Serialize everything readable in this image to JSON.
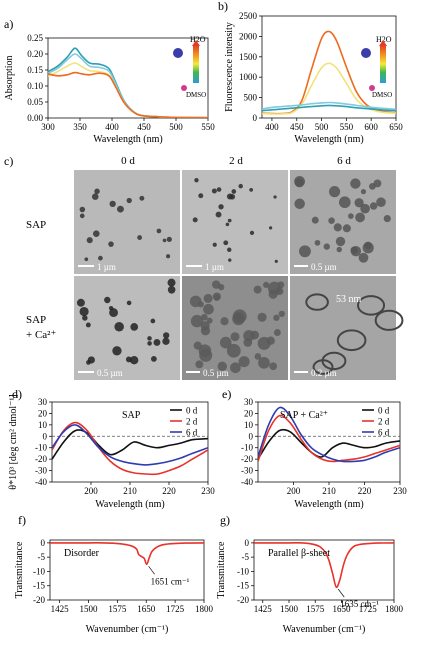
{
  "panels": {
    "a": {
      "letter": "a)"
    },
    "b": {
      "letter": "b)"
    },
    "c": {
      "letter": "c)"
    },
    "d": {
      "letter": "d)"
    },
    "e": {
      "letter": "e)"
    },
    "f": {
      "letter": "f)"
    },
    "g": {
      "letter": "g)"
    }
  },
  "colors": {
    "orange": "#ee6a1e",
    "yellow": "#f2e27a",
    "cyan": "#7fcbe0",
    "teal": "#2f9fb1",
    "black": "#111111",
    "red": "#e8322a",
    "blue": "#2f3cb0",
    "tem_bg": "#b9b9b9",
    "scale_bar": "#ffffff"
  },
  "solvent_gradient": {
    "top_label": "H2O",
    "bottom_label": "DMSO",
    "colors": [
      "#e33d22",
      "#f4a01f",
      "#f3e93b",
      "#3fb84d",
      "#2f9bd6"
    ]
  },
  "tem": {
    "col_headers": [
      "0 d",
      "2 d",
      "6 d"
    ],
    "row_labels": [
      "SAP",
      "SAP",
      "+ Ca²⁺"
    ],
    "scale_labels": [
      "1 µm",
      "1 µm",
      "0.5 µm",
      "0.5 µm",
      "0.5 µm",
      "0.2 µm"
    ],
    "fiber_label": "53 nm"
  },
  "chart_data": [
    {
      "id": "a",
      "type": "line",
      "xlabel": "Wavelength (nm)",
      "ylabel": "Absorption",
      "xlim": [
        300,
        550
      ],
      "ylim": [
        0,
        0.25
      ],
      "xticks": [
        300,
        350,
        400,
        450,
        500,
        550
      ],
      "yticks": [
        0,
        0.05,
        0.1,
        0.15,
        0.2,
        0.25
      ],
      "ytick_labels": [
        "0.00",
        "0.05",
        "0.10",
        "0.15",
        "0.20",
        "0.25"
      ],
      "series": [
        {
          "color": "#2f9fb1",
          "x": [
            300,
            315,
            330,
            342,
            352,
            365,
            380,
            395,
            405,
            420,
            440,
            470,
            500,
            550
          ],
          "y": [
            0.145,
            0.162,
            0.19,
            0.218,
            0.196,
            0.172,
            0.168,
            0.155,
            0.115,
            0.05,
            0.012,
            0.004,
            0.002,
            0.001
          ]
        },
        {
          "color": "#7fcbe0",
          "x": [
            300,
            315,
            330,
            342,
            352,
            365,
            380,
            395,
            405,
            420,
            440,
            470,
            500,
            550
          ],
          "y": [
            0.14,
            0.155,
            0.182,
            0.2,
            0.186,
            0.162,
            0.158,
            0.147,
            0.11,
            0.048,
            0.012,
            0.004,
            0.002,
            0.001
          ]
        },
        {
          "color": "#f2e27a",
          "x": [
            300,
            315,
            330,
            342,
            352,
            365,
            380,
            395,
            405,
            420,
            440,
            470,
            500,
            550
          ],
          "y": [
            0.13,
            0.145,
            0.162,
            0.172,
            0.162,
            0.148,
            0.145,
            0.135,
            0.1,
            0.045,
            0.011,
            0.004,
            0.002,
            0.001
          ]
        },
        {
          "color": "#ee6a1e",
          "x": [
            300,
            315,
            330,
            342,
            352,
            365,
            380,
            395,
            405,
            420,
            440,
            470,
            500,
            550
          ],
          "y": [
            0.138,
            0.132,
            0.135,
            0.142,
            0.138,
            0.135,
            0.14,
            0.132,
            0.1,
            0.045,
            0.011,
            0.004,
            0.002,
            0.001
          ]
        }
      ]
    },
    {
      "id": "b",
      "type": "line",
      "xlabel": "Wavelength (nm)",
      "ylabel": "Fluorescence intensity",
      "xlim": [
        380,
        650
      ],
      "ylim": [
        0,
        2500
      ],
      "xticks": [
        400,
        450,
        500,
        550,
        600,
        650
      ],
      "yticks": [
        0,
        500,
        1000,
        1500,
        2000,
        2500
      ],
      "series": [
        {
          "color": "#ee6a1e",
          "x": [
            380,
            400,
            420,
            440,
            460,
            480,
            500,
            515,
            530,
            550,
            570,
            590,
            610,
            630,
            650
          ],
          "y": [
            120,
            110,
            110,
            150,
            420,
            1200,
            1950,
            2120,
            1900,
            1250,
            650,
            330,
            200,
            150,
            130
          ]
        },
        {
          "color": "#f2e27a",
          "x": [
            380,
            400,
            420,
            440,
            460,
            480,
            500,
            515,
            530,
            550,
            570,
            590,
            610,
            630,
            650
          ],
          "y": [
            110,
            100,
            100,
            130,
            330,
            800,
            1230,
            1340,
            1230,
            850,
            460,
            260,
            170,
            130,
            120
          ]
        },
        {
          "color": "#7fcbe0",
          "x": [
            380,
            400,
            420,
            440,
            460,
            480,
            500,
            515,
            530,
            550,
            570,
            590,
            610,
            630,
            650
          ],
          "y": [
            220,
            260,
            280,
            300,
            320,
            350,
            370,
            380,
            370,
            340,
            310,
            280,
            250,
            230,
            210
          ]
        },
        {
          "color": "#2f9fb1",
          "x": [
            380,
            400,
            420,
            440,
            460,
            480,
            500,
            515,
            530,
            550,
            570,
            590,
            610,
            630,
            650
          ],
          "y": [
            180,
            200,
            220,
            240,
            260,
            280,
            300,
            310,
            300,
            280,
            250,
            230,
            210,
            190,
            180
          ]
        }
      ]
    },
    {
      "id": "d",
      "type": "line",
      "xlabel": "Wavelength (nm)",
      "ylabel": "θ*10³ [deg cm² dmol⁻¹]",
      "xlim": [
        190,
        230
      ],
      "ylim": [
        -40,
        30
      ],
      "xticks": [
        200,
        210,
        220,
        230
      ],
      "yticks": [
        30,
        20,
        10,
        0,
        -10,
        -20,
        -30,
        -40
      ],
      "annotation": "SAP",
      "legend": [
        "0 d",
        "2 d",
        "6 d"
      ],
      "series": [
        {
          "name": "0 d",
          "color": "#111111",
          "x": [
            190,
            193,
            196,
            199,
            202,
            205,
            208,
            211,
            214,
            217,
            220,
            223,
            226,
            230
          ],
          "y": [
            -20,
            -5,
            5,
            3,
            -8,
            -16,
            -12,
            -5,
            -8,
            -10,
            -8,
            -6,
            -3,
            -2
          ]
        },
        {
          "name": "2 d",
          "color": "#e8322a",
          "x": [
            190,
            193,
            196,
            199,
            202,
            205,
            208,
            211,
            214,
            217,
            220,
            223,
            226,
            230
          ],
          "y": [
            -12,
            5,
            12,
            5,
            -10,
            -22,
            -29,
            -32,
            -33,
            -33,
            -30,
            -26,
            -20,
            -12
          ]
        },
        {
          "name": "6 d",
          "color": "#2f3cb0",
          "x": [
            190,
            193,
            196,
            199,
            202,
            205,
            208,
            211,
            214,
            217,
            220,
            223,
            226,
            230
          ],
          "y": [
            -10,
            4,
            10,
            2,
            -10,
            -18,
            -22,
            -24,
            -25,
            -24,
            -22,
            -19,
            -15,
            -10
          ]
        }
      ]
    },
    {
      "id": "e",
      "type": "line",
      "xlabel": "Wavelength (nm)",
      "ylabel": "",
      "xlim": [
        190,
        230
      ],
      "ylim": [
        -40,
        30
      ],
      "xticks": [
        200,
        210,
        220,
        230
      ],
      "yticks": [
        30,
        20,
        10,
        0,
        -10,
        -20,
        -30,
        -40
      ],
      "annotation": "SAP + Ca²⁺",
      "legend": [
        "0 d",
        "2 d",
        "6 d"
      ],
      "series": [
        {
          "name": "0 d",
          "color": "#111111",
          "x": [
            190,
            193,
            196,
            199,
            202,
            205,
            208,
            211,
            214,
            217,
            220,
            223,
            226,
            230
          ],
          "y": [
            -20,
            -5,
            5,
            4,
            -5,
            -14,
            -18,
            -10,
            -6,
            -8,
            -10,
            -9,
            -6,
            -4
          ]
        },
        {
          "name": "2 d",
          "color": "#e8322a",
          "x": [
            190,
            193,
            196,
            199,
            202,
            205,
            208,
            211,
            214,
            217,
            220,
            223,
            226,
            230
          ],
          "y": [
            -22,
            5,
            18,
            12,
            -2,
            -14,
            -20,
            -22,
            -21,
            -20,
            -18,
            -15,
            -12,
            -8
          ]
        },
        {
          "name": "6 d",
          "color": "#2f3cb0",
          "x": [
            190,
            193,
            196,
            199,
            202,
            205,
            208,
            211,
            214,
            217,
            220,
            223,
            226,
            230
          ],
          "y": [
            -18,
            10,
            25,
            18,
            2,
            -10,
            -16,
            -20,
            -22,
            -22,
            -21,
            -18,
            -14,
            -10
          ]
        }
      ]
    },
    {
      "id": "f",
      "type": "line",
      "xlabel": "Wavenumber (cm⁻¹)",
      "ylabel": "Transmittance",
      "xlim": [
        1400,
        1800
      ],
      "ylim": [
        -20,
        1
      ],
      "xticks": [
        1425,
        1500,
        1575,
        1650,
        1725,
        1800
      ],
      "yticks": [
        0,
        -5,
        -10,
        -15,
        -20
      ],
      "annotation": "Disorder",
      "peak_label": "1651 cm⁻¹",
      "series": [
        {
          "color": "#e8322a",
          "x": [
            1400,
            1450,
            1500,
            1540,
            1580,
            1610,
            1625,
            1630,
            1638,
            1645,
            1651,
            1658,
            1665,
            1680,
            1700,
            1750,
            1800
          ],
          "y": [
            0,
            0,
            0,
            0,
            -0.3,
            -1.0,
            -2.2,
            -4.0,
            -4.8,
            -5.5,
            -7.5,
            -5.2,
            -3.0,
            -1.3,
            -0.5,
            -0.1,
            0
          ]
        }
      ]
    },
    {
      "id": "g",
      "type": "line",
      "xlabel": "Wavenumber (cm⁻¹)",
      "ylabel": "Transmittance",
      "xlim": [
        1400,
        1800
      ],
      "ylim": [
        -20,
        1
      ],
      "xticks": [
        1425,
        1500,
        1575,
        1650,
        1725,
        1800
      ],
      "yticks": [
        0,
        -5,
        -10,
        -15,
        -20
      ],
      "annotation": "Parallel β-sheet",
      "peak_label": "1635 cm⁻¹",
      "series": [
        {
          "color": "#e8322a",
          "x": [
            1400,
            1450,
            1500,
            1540,
            1570,
            1590,
            1605,
            1615,
            1625,
            1635,
            1645,
            1655,
            1665,
            1680,
            1700,
            1750,
            1800
          ],
          "y": [
            0,
            0,
            0,
            0,
            -0.5,
            -1.5,
            -3.5,
            -6.5,
            -11,
            -15.5,
            -13,
            -8,
            -4.5,
            -1.8,
            -0.6,
            -0.1,
            0
          ]
        }
      ]
    }
  ]
}
